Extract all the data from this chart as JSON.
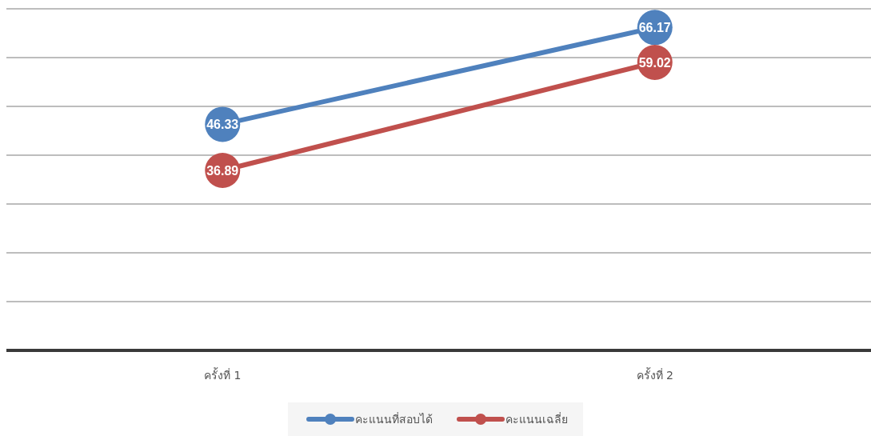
{
  "chart_data": {
    "type": "line",
    "categories": [
      "ครั้งที่ 1",
      "ครั้งที่ 2"
    ],
    "series": [
      {
        "name": "คะแนนที่สอบได้",
        "color": "#4f81bd",
        "values": [
          46.33,
          66.17
        ]
      },
      {
        "name": "คะแนนเฉลี่ย",
        "color": "#c0504d",
        "values": [
          36.89,
          59.02
        ]
      }
    ],
    "ylim": [
      0,
      70
    ],
    "yticks": [
      {
        "value": 0,
        "label": null
      },
      {
        "value": 10,
        "label": null
      },
      {
        "value": 20,
        "label": null
      },
      {
        "value": 30,
        "label": null
      },
      {
        "value": 40,
        "label": null
      },
      {
        "value": 50,
        "label": null
      },
      {
        "value": 60,
        "label": null
      },
      {
        "value": 70,
        "label": null
      }
    ],
    "grid": "y",
    "legend": "bottom",
    "marker": "circle",
    "line_style": "solid",
    "data_labels": true,
    "tick_labels": "x"
  }
}
